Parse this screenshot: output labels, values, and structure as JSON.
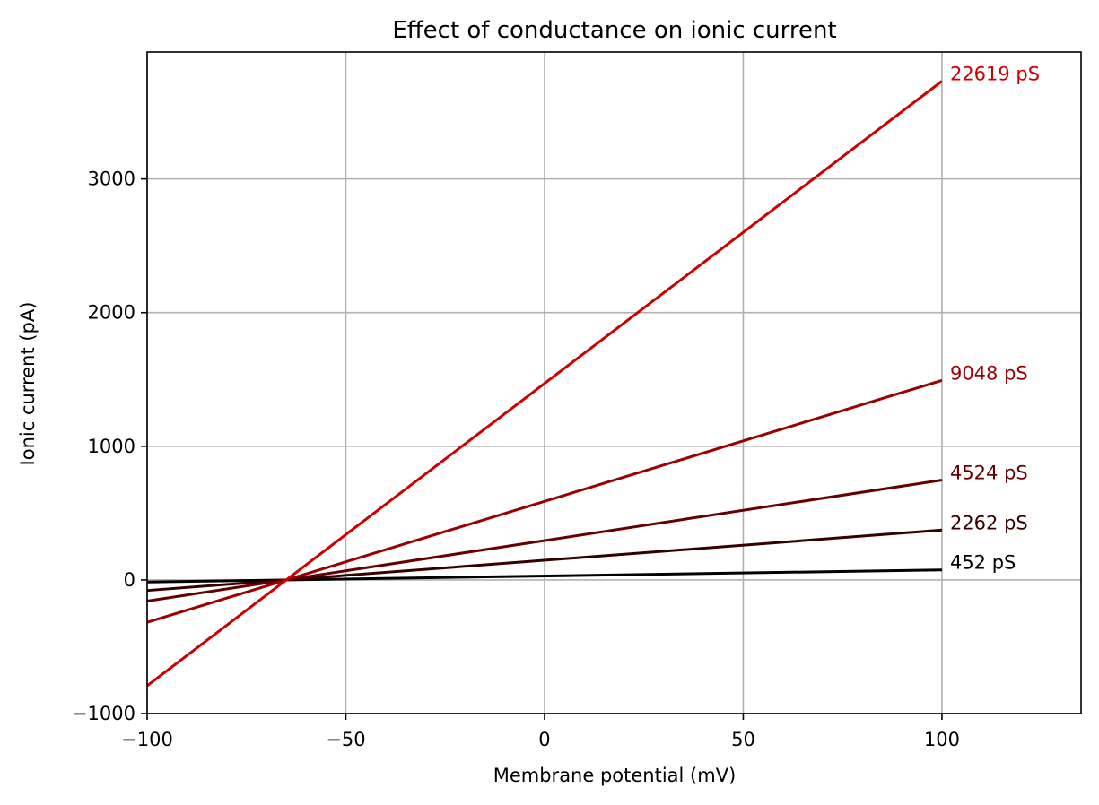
{
  "chart_data": {
    "type": "line",
    "title": "Effect of conductance on ionic current",
    "xlabel": "Membrane potential (mV)",
    "ylabel": "Ionic current (pA)",
    "xlim": [
      -100,
      135
    ],
    "ylim": [
      -1000,
      3950
    ],
    "xticks": [
      -100,
      -50,
      0,
      50,
      100
    ],
    "yticks": [
      -1000,
      0,
      1000,
      2000,
      3000
    ],
    "xtick_labels": [
      "−100",
      "−50",
      "0",
      "50",
      "100"
    ],
    "ytick_labels": [
      "−1000",
      "0",
      "1000",
      "2000",
      "3000"
    ],
    "grid": true,
    "reversal_potential_mV": -65,
    "series": [
      {
        "name": "452 pS",
        "label": "452 pS",
        "x": [
          -100,
          100
        ],
        "y": [
          -16,
          75
        ],
        "color": "#000000"
      },
      {
        "name": "2262 pS",
        "label": "2262 pS",
        "x": [
          -100,
          100
        ],
        "y": [
          -79,
          373
        ],
        "color": "#330000"
      },
      {
        "name": "4524 pS",
        "label": "4524 pS",
        "x": [
          -100,
          100
        ],
        "y": [
          -158,
          747
        ],
        "color": "#660000"
      },
      {
        "name": "9048 pS",
        "label": "9048 pS",
        "x": [
          -100,
          100
        ],
        "y": [
          -317,
          1493
        ],
        "color": "#990000"
      },
      {
        "name": "22619 pS",
        "label": "22619 pS",
        "x": [
          -100,
          100
        ],
        "y": [
          -792,
          3732
        ],
        "color": "#cc0000"
      }
    ]
  }
}
